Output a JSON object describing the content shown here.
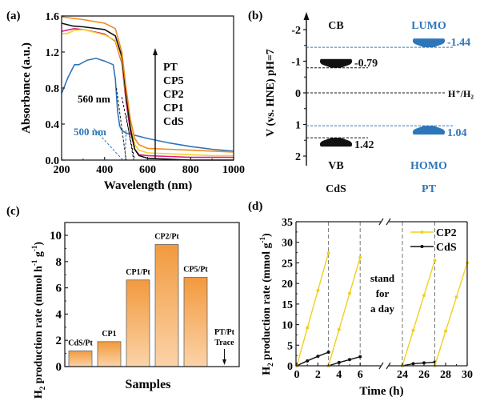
{
  "colors": {
    "PT": "#f28a1e",
    "CP5": "#f2d22a",
    "CP2": "#111111",
    "CP1": "#e0197d",
    "CdS": "#2e76b9",
    "blue_label": "#2e76b9",
    "bar_top": "#f29a3e",
    "bar_bottom": "#fbd3a8",
    "cp2_line": "#f0d020",
    "cds_line": "#111111",
    "dash_gray": "#777777"
  },
  "chart_data": [
    {
      "panel": "(a)",
      "type": "line",
      "xlabel": "Wavelength (nm)",
      "ylabel": "Absorbance (a.u.)",
      "xlim": [
        200,
        1000
      ],
      "ylim": [
        0.0,
        1.6
      ],
      "xticks": [
        "200",
        "400",
        "600",
        "800",
        "1000"
      ],
      "yticks": [
        "0.0",
        "0.4",
        "0.8",
        "1.2",
        "1.6"
      ],
      "legend": [
        "PT",
        "CP5",
        "CP2",
        "CP1",
        "CdS"
      ],
      "legend_placement": "right, with upward arrow",
      "annotations": [
        {
          "text": "560 nm",
          "color": "#111111"
        },
        {
          "text": "500 nm",
          "color": "#2e76b9"
        }
      ],
      "series": [
        {
          "name": "PT",
          "x": [
            200,
            300,
            400,
            450,
            480,
            500,
            520,
            540,
            560,
            600,
            700,
            800,
            900,
            1000
          ],
          "y": [
            1.59,
            1.56,
            1.52,
            1.46,
            1.2,
            0.8,
            0.45,
            0.24,
            0.17,
            0.13,
            0.12,
            0.11,
            0.1,
            0.09
          ]
        },
        {
          "name": "CP5",
          "x": [
            200,
            220,
            260,
            300,
            400,
            450,
            480,
            500,
            520,
            540,
            560,
            600,
            700,
            800,
            900,
            1000
          ],
          "y": [
            1.41,
            1.4,
            1.44,
            1.45,
            1.39,
            1.33,
            1.1,
            0.7,
            0.38,
            0.17,
            0.11,
            0.08,
            0.07,
            0.06,
            0.05,
            0.05
          ]
        },
        {
          "name": "CP2",
          "x": [
            200,
            250,
            300,
            400,
            450,
            480,
            500,
            520,
            540,
            560,
            600,
            700,
            800,
            1000
          ],
          "y": [
            1.52,
            1.49,
            1.48,
            1.45,
            1.38,
            1.15,
            0.72,
            0.35,
            0.12,
            0.05,
            0.02,
            0.01,
            0.0,
            0.0
          ]
        },
        {
          "name": "CP1",
          "x": [
            200,
            260,
            300,
            400,
            450,
            480,
            500,
            520,
            540,
            560,
            600,
            700,
            800,
            900,
            1000
          ],
          "y": [
            1.43,
            1.46,
            1.45,
            1.4,
            1.32,
            1.08,
            0.65,
            0.32,
            0.12,
            0.06,
            0.05,
            0.04,
            0.03,
            0.03,
            0.03
          ]
        },
        {
          "name": "CdS",
          "x": [
            200,
            230,
            260,
            280,
            320,
            360,
            400,
            440,
            450,
            460,
            470,
            480,
            500,
            550,
            600,
            700,
            800,
            900,
            1000
          ],
          "y": [
            0.74,
            0.92,
            1.06,
            1.06,
            1.11,
            1.13,
            1.1,
            1.06,
            0.9,
            0.55,
            0.38,
            0.33,
            0.3,
            0.27,
            0.24,
            0.19,
            0.15,
            0.12,
            0.1
          ]
        }
      ],
      "tangents": [
        {
          "color": "#111111",
          "x": [
            455,
            500
          ],
          "y": [
            0.8,
            0.0
          ]
        },
        {
          "color": "#111111",
          "x": [
            480,
            540
          ],
          "y": [
            0.7,
            0.0
          ]
        },
        {
          "color": "#111111",
          "x": [
            500,
            535
          ],
          "y": [
            0.5,
            0.0
          ]
        },
        {
          "color": "#2e76b9",
          "x": [
            350,
            485
          ],
          "y": [
            0.35,
            0.0
          ]
        },
        {
          "color": "#2e76b9",
          "x": [
            500,
            495
          ],
          "y": [
            0.33,
            0.0
          ]
        }
      ]
    },
    {
      "panel": "(b)",
      "type": "diagram",
      "ylabel": "V (vs. HNE) pH=7",
      "ylim": [
        -2.4,
        2.4
      ],
      "yticks": [
        "-2",
        "-1",
        "0",
        "1",
        "2"
      ],
      "reference": {
        "label": "H⁺/H₂",
        "value": 0
      },
      "materials": [
        {
          "name": "CdS",
          "top_label": "CB",
          "bottom_label": "VB",
          "cb": -0.79,
          "vb": 1.42,
          "cb_text": "-0.79",
          "vb_text": "1.42",
          "color": "#111111"
        },
        {
          "name": "PT",
          "top_label": "LUMO",
          "bottom_label": "HOMO",
          "cb": -1.44,
          "vb": 1.04,
          "cb_text": "-1.44",
          "vb_text": "1.04",
          "color": "#2e76b9"
        }
      ]
    },
    {
      "panel": "(c)",
      "type": "bar",
      "xlabel": "Samples",
      "ylabel": "H₂ production rate (mmol h⁻¹ g⁻¹)",
      "ylim": [
        0,
        11
      ],
      "yticks": [
        "0",
        "2",
        "4",
        "6",
        "8",
        "10"
      ],
      "categories": [
        "CdS/Pt",
        "CP1",
        "CP1/Pt",
        "CP2/Pt",
        "CP5/Pt",
        "PT/Pt"
      ],
      "values": [
        1.2,
        1.9,
        6.6,
        9.3,
        6.8,
        0
      ],
      "annotations": [
        {
          "category": "PT/Pt",
          "text": "Trace"
        }
      ]
    },
    {
      "panel": "(d)",
      "type": "line",
      "xlabel": "Time (h)",
      "ylabel": "H₂ production rate (mmol g⁻¹)",
      "ylim": [
        0,
        35
      ],
      "yticks": [
        "0",
        "5",
        "10",
        "15",
        "20",
        "25",
        "30",
        "35"
      ],
      "xticks_left": [
        "0",
        "2",
        "4",
        "6"
      ],
      "xticks_right": [
        "24",
        "26",
        "28",
        "30"
      ],
      "axis_break": "//",
      "cycle_dividers": [
        3,
        6,
        24,
        27
      ],
      "annotation": [
        "stand",
        "for",
        "a day"
      ],
      "legend": [
        "CP2",
        "CdS"
      ],
      "legend_placement": "top-right",
      "series": [
        {
          "name": "CP2",
          "segments": [
            {
              "x": [
                0,
                1,
                2,
                3
              ],
              "y": [
                0,
                9.2,
                18.3,
                27.4
              ]
            },
            {
              "x": [
                3,
                4,
                5,
                6
              ],
              "y": [
                0,
                8.8,
                17.6,
                26.3
              ]
            },
            {
              "x": [
                24,
                25,
                26,
                27
              ],
              "y": [
                0,
                8.6,
                17.1,
                25.6
              ]
            },
            {
              "x": [
                27,
                28,
                29,
                30
              ],
              "y": [
                0,
                8.4,
                16.7,
                25.0
              ]
            }
          ]
        },
        {
          "name": "CdS",
          "segments": [
            {
              "x": [
                0,
                1,
                2,
                3
              ],
              "y": [
                0,
                1.2,
                2.3,
                3.3
              ]
            },
            {
              "x": [
                3,
                4,
                5,
                6
              ],
              "y": [
                0,
                0.8,
                1.5,
                2.2
              ]
            },
            {
              "x": [
                24,
                25,
                26,
                27
              ],
              "y": [
                0,
                0.5,
                0.7,
                0.9
              ]
            }
          ]
        }
      ]
    }
  ],
  "panel_labels": [
    "(a)",
    "(b)",
    "(c)",
    "(d)"
  ]
}
